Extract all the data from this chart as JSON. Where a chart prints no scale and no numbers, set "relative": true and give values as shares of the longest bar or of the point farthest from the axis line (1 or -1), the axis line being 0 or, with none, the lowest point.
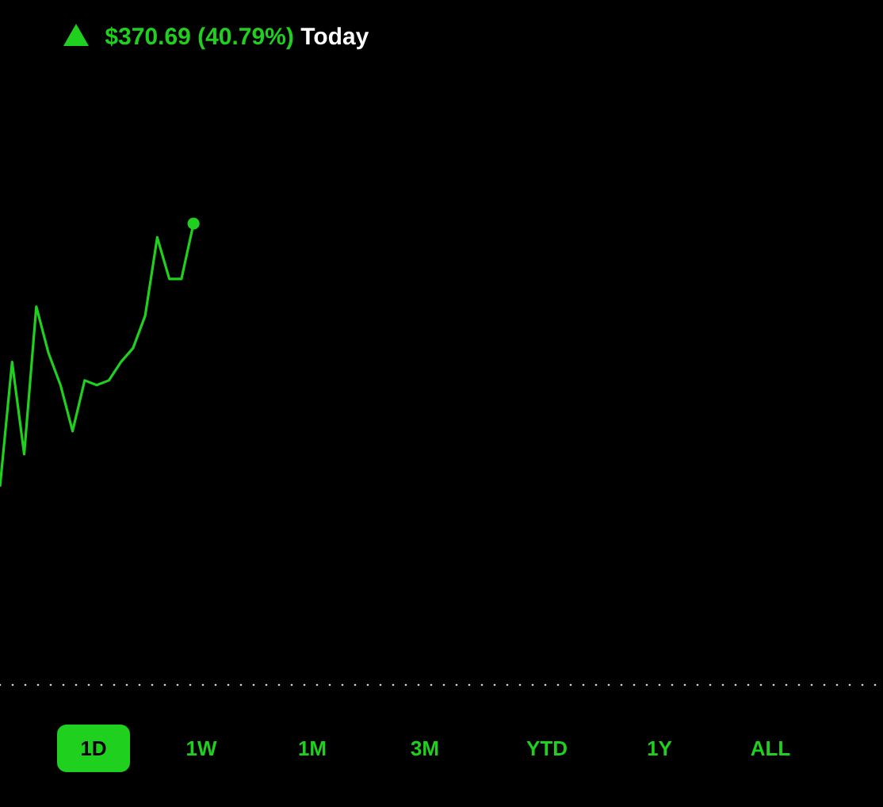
{
  "chart_data": {
    "type": "line",
    "title": "$370.69 (40.79%)",
    "subtitle": "Today",
    "relative": true,
    "marker": "none",
    "grid": false,
    "categories": [
      null,
      null,
      null,
      null,
      null,
      null,
      null,
      null,
      null,
      null,
      null,
      null,
      null,
      null,
      null,
      null,
      null,
      null,
      null,
      null,
      null,
      null,
      null,
      null,
      null,
      null,
      null,
      null,
      null,
      null,
      null,
      null,
      null,
      null,
      null,
      null,
      null,
      null,
      null,
      null,
      null,
      null,
      null,
      null,
      null,
      null,
      null,
      null,
      null,
      null,
      null,
      null,
      null,
      null,
      null,
      null,
      null,
      null,
      null,
      null,
      null,
      null,
      null,
      null,
      null,
      null,
      null,
      null,
      null,
      null,
      null,
      null,
      null,
      null
    ],
    "series": [
      {
        "color": "#1fd01f",
        "values": [
          0.43,
          0.7,
          0.5,
          0.82,
          0.72,
          0.65,
          0.55,
          0.66,
          0.65,
          0.66,
          0.7,
          0.73,
          0.8,
          0.97,
          0.88,
          0.88,
          1,
          null,
          null,
          null,
          null,
          null,
          null,
          null,
          null,
          null,
          null,
          null,
          null,
          null,
          null,
          null,
          null,
          null,
          null,
          null,
          null,
          null,
          null,
          null,
          null,
          null,
          null,
          null,
          null,
          null,
          null,
          null,
          null,
          null,
          null,
          null,
          null,
          null,
          null,
          null,
          null,
          null,
          null,
          null,
          null,
          null,
          null,
          null,
          null,
          null,
          null,
          null,
          null,
          null,
          null,
          null,
          null,
          null
        ]
      }
    ],
    "annotations": [
      "1D",
      "1W",
      "1M",
      "3M",
      "YTD",
      "1Y",
      "ALL"
    ]
  }
}
